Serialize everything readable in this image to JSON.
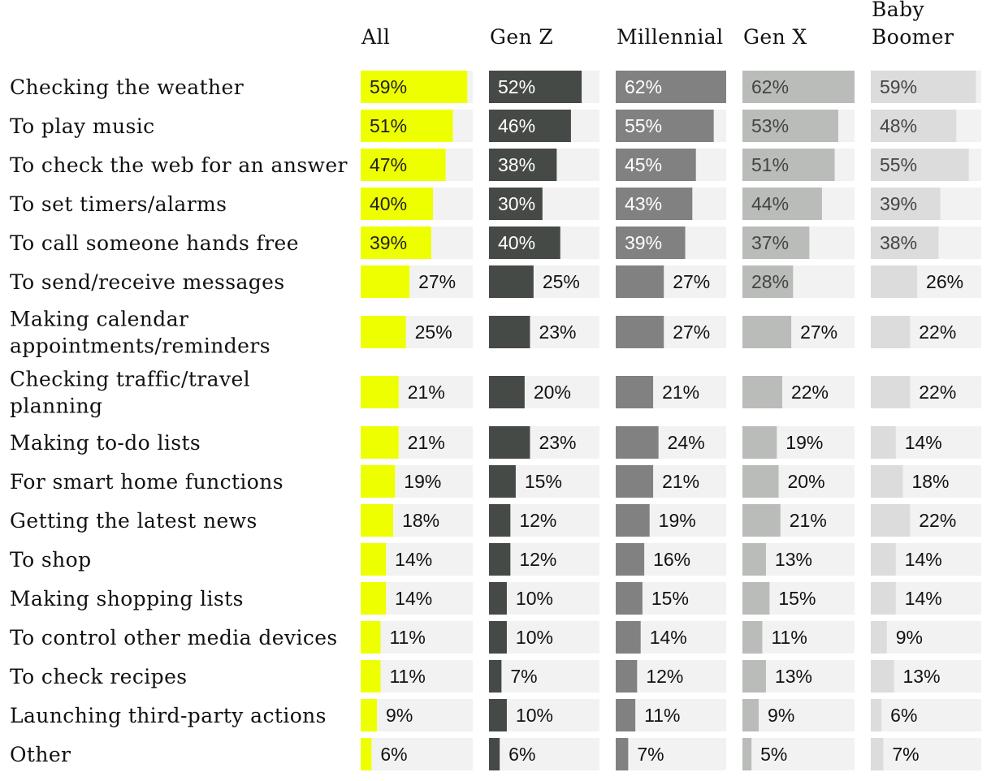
{
  "chart_data": {
    "type": "bar",
    "orientation": "horizontal",
    "layout": "small-multiples",
    "xlim": [
      0,
      62
    ],
    "grid": false,
    "legend": "none",
    "categories": [
      "Checking the weather",
      "To play music",
      "To check the web for an answer",
      "To set timers/alarms",
      "To call someone hands free",
      "To send/receive messages",
      "Making calendar appointments/reminders",
      "Checking traffic/travel planning",
      "Making to-do lists",
      "For smart home functions",
      "Getting the latest news",
      "To shop",
      "Making shopping lists",
      "To control other media devices",
      "To check recipes",
      "Launching third-party actions",
      "Other"
    ],
    "category_lines": [
      [
        "Checking the weather"
      ],
      [
        "To play music"
      ],
      [
        "To check the web for an answer"
      ],
      [
        "To set timers/alarms"
      ],
      [
        "To call someone hands free"
      ],
      [
        "To send/receive messages"
      ],
      [
        "Making calendar",
        "appointments/reminders"
      ],
      [
        "Checking traffic/travel",
        "planning"
      ],
      [
        "Making to-do lists"
      ],
      [
        "For smart home functions"
      ],
      [
        "Getting the latest news"
      ],
      [
        "To shop"
      ],
      [
        "Making shopping lists"
      ],
      [
        "To control other media devices"
      ],
      [
        "To check recipes"
      ],
      [
        "Launching third-party actions"
      ],
      [
        "Other"
      ]
    ],
    "value_suffix": "%",
    "series": [
      {
        "name": "All",
        "header_lines": [
          "All"
        ],
        "color": "#eeff00",
        "inside_text_color": "#222222",
        "values": [
          59,
          51,
          47,
          40,
          39,
          27,
          25,
          21,
          21,
          19,
          18,
          14,
          14,
          11,
          11,
          9,
          6
        ]
      },
      {
        "name": "Gen Z",
        "header_lines": [
          "Gen Z"
        ],
        "color": "#464a46",
        "inside_text_color": "#ffffff",
        "values": [
          52,
          46,
          38,
          30,
          40,
          25,
          23,
          20,
          23,
          15,
          12,
          12,
          10,
          10,
          7,
          10,
          6
        ]
      },
      {
        "name": "Millennial",
        "header_lines": [
          "Millennial"
        ],
        "color": "#808180",
        "inside_text_color": "#ffffff",
        "values": [
          62,
          55,
          45,
          43,
          39,
          27,
          27,
          21,
          24,
          21,
          19,
          16,
          15,
          14,
          12,
          11,
          7
        ]
      },
      {
        "name": "Gen X",
        "header_lines": [
          "Gen X"
        ],
        "color": "#b9bcb8",
        "inside_text_color": "#444444",
        "values": [
          62,
          53,
          51,
          44,
          37,
          28,
          27,
          22,
          19,
          20,
          21,
          13,
          15,
          11,
          13,
          9,
          5
        ]
      },
      {
        "name": "Baby Boomer",
        "header_lines": [
          "Baby",
          "Boomer"
        ],
        "color": "#dcdcdc",
        "inside_text_color": "#444444",
        "values": [
          59,
          48,
          55,
          39,
          38,
          26,
          22,
          22,
          14,
          18,
          22,
          14,
          14,
          9,
          13,
          6,
          7
        ]
      }
    ],
    "track_color": "#f2f2f2"
  }
}
